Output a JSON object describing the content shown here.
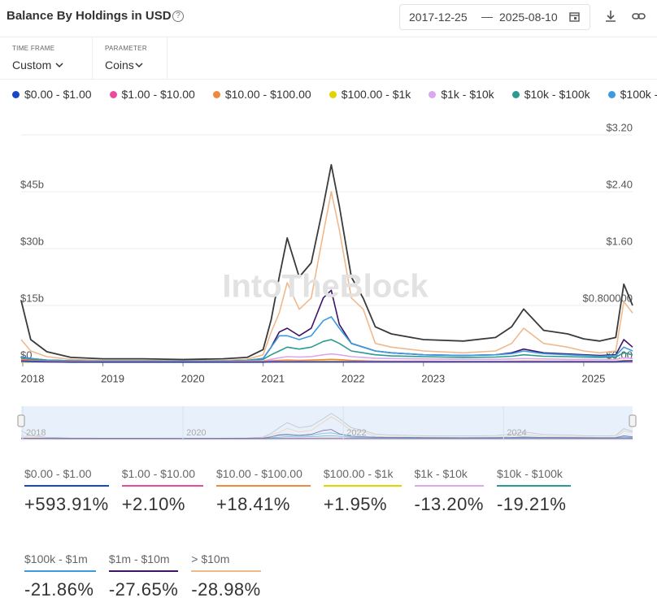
{
  "header": {
    "title": "Balance By Holdings in USD",
    "start_date": "2017-12-25",
    "end_date": "2025-08-10"
  },
  "controls": {
    "time_frame_label": "TIME FRAME",
    "time_frame": "Custom",
    "parameter_label": "PARAMETER",
    "parameter": "Coins"
  },
  "watermark": "IntoTheBlock",
  "chart_data": {
    "type": "line",
    "x": [
      2017.98,
      2018.1,
      2018.3,
      2018.6,
      2019.0,
      2019.5,
      2020.0,
      2020.5,
      2020.8,
      2021.0,
      2021.1,
      2021.2,
      2021.3,
      2021.45,
      2021.6,
      2021.75,
      2021.85,
      2021.95,
      2022.1,
      2022.25,
      2022.4,
      2022.6,
      2023.0,
      2023.5,
      2023.9,
      2024.1,
      2024.25,
      2024.5,
      2024.8,
      2025.0,
      2025.2,
      2025.4,
      2025.5,
      2025.61
    ],
    "xlim": [
      2017.98,
      2025.61
    ],
    "xticks": [
      2018,
      2019,
      2020,
      2021,
      2022,
      2023,
      2025
    ],
    "navigator_xticks": [
      2018,
      2020,
      2022,
      2024
    ],
    "ylim": [
      0,
      60
    ],
    "yticks": [
      {
        "value": 0,
        "label": "$0"
      },
      {
        "value": 15,
        "label": "$15b"
      },
      {
        "value": 30,
        "label": "$30b"
      },
      {
        "value": 45,
        "label": "$45b"
      }
    ],
    "y2lim": [
      0,
      3.2
    ],
    "y2ticks": [
      {
        "value": 0,
        "label": "$0.00"
      },
      {
        "value": 0.8,
        "label": "$0.800000"
      },
      {
        "value": 1.6,
        "label": "$1.60"
      },
      {
        "value": 2.4,
        "label": "$2.40"
      },
      {
        "value": 3.2,
        "label": "$3.20"
      }
    ],
    "grid": true,
    "series": [
      {
        "name": "$0.00 - $1.00",
        "color": "#1a47c9",
        "change": "+593.91%",
        "values": [
          0.3,
          0.2,
          0.1,
          0.05,
          0.05,
          0.05,
          0.05,
          0.05,
          0.05,
          0.05,
          0.1,
          0.1,
          0.1,
          0.1,
          0.1,
          0.1,
          0.1,
          0.1,
          0.1,
          0.1,
          0.1,
          0.1,
          0.1,
          0.1,
          0.1,
          0.1,
          0.1,
          0.1,
          0.1,
          0.1,
          0.1,
          0.1,
          0.3,
          0.4
        ]
      },
      {
        "name": "$1.00 - $10.00",
        "color": "#e84c9a",
        "change": "+2.10%",
        "values": [
          0.5,
          0.3,
          0.2,
          0.1,
          0.1,
          0.1,
          0.1,
          0.1,
          0.1,
          0.1,
          0.15,
          0.15,
          0.15,
          0.15,
          0.15,
          0.15,
          0.15,
          0.15,
          0.15,
          0.15,
          0.15,
          0.15,
          0.15,
          0.15,
          0.15,
          0.15,
          0.15,
          0.15,
          0.15,
          0.15,
          0.15,
          0.15,
          0.2,
          0.2
        ]
      },
      {
        "name": "$10.00 - $100.00",
        "color": "#f0883e",
        "change": "+18.41%",
        "values": [
          0.8,
          0.5,
          0.3,
          0.2,
          0.15,
          0.15,
          0.15,
          0.15,
          0.2,
          0.3,
          0.4,
          0.5,
          0.6,
          0.5,
          0.6,
          0.7,
          0.8,
          0.7,
          0.5,
          0.4,
          0.35,
          0.3,
          0.3,
          0.25,
          0.25,
          0.3,
          0.35,
          0.3,
          0.3,
          0.3,
          0.25,
          0.3,
          0.5,
          0.4
        ]
      },
      {
        "name": "$100.00 - $1k",
        "color": "#e2d400",
        "change": "+1.95%",
        "values": [
          0.1,
          0.1,
          0.1,
          0.05,
          0.05,
          0.05,
          0.05,
          0.05,
          0.05,
          0.1,
          0.15,
          0.2,
          0.25,
          0.25,
          0.25,
          0.3,
          0.3,
          0.3,
          0.25,
          0.2,
          0.2,
          0.2,
          0.2,
          0.15,
          0.15,
          0.15,
          0.2,
          0.15,
          0.15,
          0.15,
          0.15,
          0.15,
          0.2,
          0.2
        ]
      },
      {
        "name": "$1k - $10k",
        "color": "#d9a8ee",
        "change": "-13.20%",
        "values": [
          0.5,
          0.4,
          0.3,
          0.2,
          0.2,
          0.2,
          0.2,
          0.2,
          0.3,
          0.4,
          0.8,
          1.2,
          1.5,
          1.4,
          1.5,
          2,
          2.2,
          2,
          1.5,
          1.3,
          1.1,
          1,
          0.9,
          0.8,
          0.8,
          0.9,
          1,
          0.9,
          0.8,
          0.8,
          0.7,
          0.8,
          1.2,
          1
        ]
      },
      {
        "name": "$10k - $100k",
        "color": "#2a9b8f",
        "change": "-19.21%",
        "values": [
          1,
          0.7,
          0.5,
          0.3,
          0.3,
          0.3,
          0.3,
          0.3,
          0.4,
          0.8,
          2,
          3,
          4,
          3.5,
          4,
          5.5,
          6,
          5,
          3,
          2.5,
          2,
          1.7,
          1.5,
          1.3,
          1.4,
          1.6,
          2,
          1.6,
          1.5,
          1.4,
          1.3,
          1.4,
          2.5,
          2
        ]
      },
      {
        "name": "$100k - $1m",
        "color": "#3a9be0",
        "change": "-21.86%",
        "values": [
          1.5,
          1,
          0.6,
          0.4,
          0.3,
          0.3,
          0.3,
          0.3,
          0.5,
          1,
          4,
          7,
          7,
          6,
          7,
          11,
          12,
          9,
          5,
          4,
          3,
          2.5,
          2,
          1.8,
          2,
          2.3,
          3,
          2.3,
          2,
          1.8,
          1.6,
          1.8,
          4,
          3
        ]
      },
      {
        "name": "$1m - $10m",
        "color": "#3d1466",
        "change": "-27.65%",
        "values": [
          1.5,
          1,
          0.6,
          0.4,
          0.3,
          0.3,
          0.3,
          0.3,
          0.5,
          1,
          4,
          8,
          9,
          7,
          9,
          17,
          19,
          10,
          5,
          4,
          3,
          2.5,
          2,
          1.8,
          2,
          2.5,
          3.5,
          2.5,
          2.2,
          2,
          1.8,
          2,
          6,
          4
        ]
      },
      {
        "name": "> $10m",
        "color": "#f0b98c",
        "change": "-28.98%",
        "values": [
          6,
          3,
          1.5,
          0.8,
          0.5,
          0.5,
          0.4,
          0.5,
          0.8,
          2,
          8,
          13,
          21,
          14,
          17,
          34,
          45,
          35,
          17,
          14,
          5,
          4,
          3,
          2.5,
          3,
          5,
          9,
          5,
          4,
          3,
          2.5,
          3,
          16,
          13
        ]
      },
      {
        "color": "#3a3a3a",
        "axis": "y2",
        "values": [
          0.87,
          0.32,
          0.15,
          0.07,
          0.05,
          0.05,
          0.04,
          0.05,
          0.07,
          0.18,
          0.6,
          1.2,
          1.75,
          1.2,
          1.4,
          2.2,
          2.78,
          2.2,
          1.2,
          0.9,
          0.5,
          0.4,
          0.32,
          0.3,
          0.35,
          0.5,
          0.75,
          0.45,
          0.4,
          0.33,
          0.3,
          0.35,
          1.1,
          0.8
        ]
      }
    ]
  }
}
